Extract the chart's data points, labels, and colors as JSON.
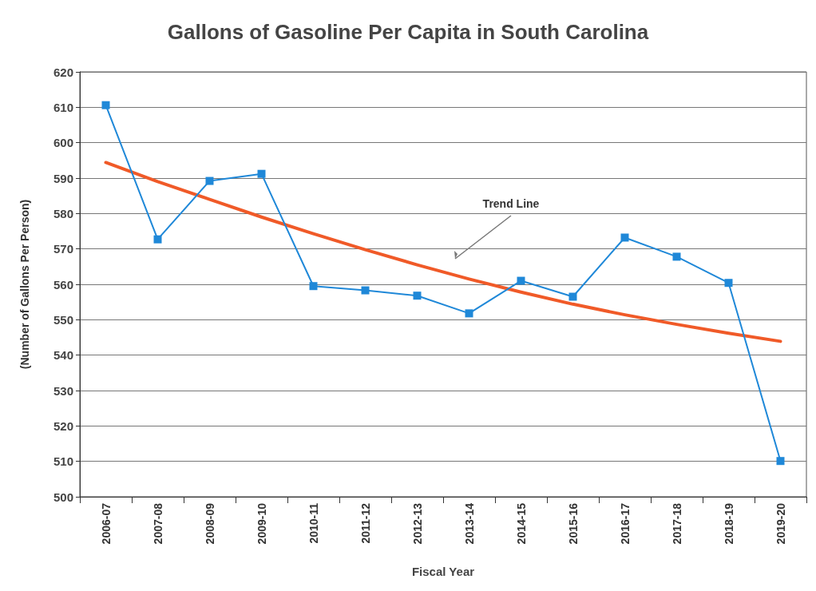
{
  "chart_data": {
    "type": "line",
    "title": "Gallons of Gasoline Per Capita in South Carolina",
    "xlabel": "Fiscal Year",
    "ylabel": "(Number of Gallons Per Person)",
    "categories": [
      "2006-07",
      "2007-08",
      "2008-09",
      "2009-10",
      "2010-11",
      "2011-12",
      "2012-13",
      "2013-14",
      "2014-15",
      "2015-16",
      "2016-17",
      "2017-18",
      "2018-19",
      "2019-20"
    ],
    "series": [
      {
        "color": "#1f88d8",
        "marker": "square",
        "values": [
          610.6,
          572.7,
          589.2,
          591.2,
          559.5,
          558.3,
          556.8,
          551.8,
          561.0,
          556.5,
          573.2,
          567.8,
          560.4,
          510.1
        ]
      },
      {
        "type": "line",
        "color": "#f05a28",
        "marker": "none",
        "values": [
          594.4,
          589,
          584,
          579,
          574.3,
          569.8,
          565.5,
          561.5,
          557.8,
          554.4,
          551.4,
          548.7,
          546.2,
          543.9
        ]
      }
    ],
    "annotations": [
      "Trend Line"
    ],
    "ylim": [
      500,
      620
    ],
    "yticks": [
      500,
      510,
      520,
      530,
      540,
      550,
      560,
      570,
      580,
      590,
      600,
      610,
      620
    ],
    "grid": "y"
  }
}
